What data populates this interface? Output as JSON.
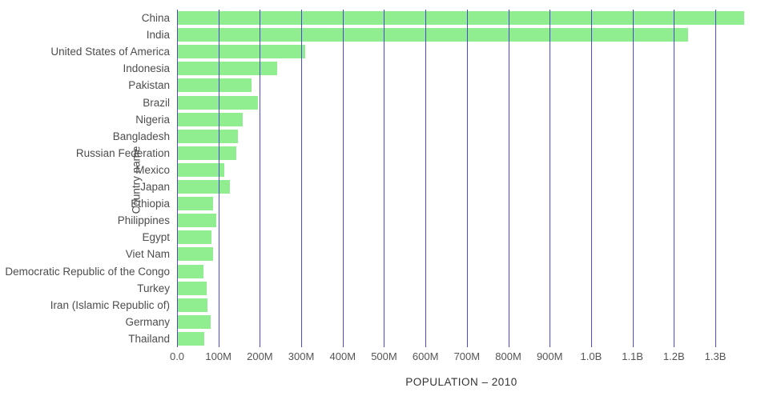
{
  "chart_data": {
    "type": "bar",
    "orientation": "horizontal",
    "title": "",
    "xlabel": "POPULATION – 2010",
    "ylabel": "Country name",
    "bar_color": "#90ee90",
    "gridline_color": "#4a4ad1",
    "legend": "none",
    "grid": "vertical",
    "xlim_millions": [
      0,
      1385
    ],
    "categories": [
      "China",
      "India",
      "United States of America",
      "Indonesia",
      "Pakistan",
      "Brazil",
      "Nigeria",
      "Bangladesh",
      "Russian Federation",
      "Mexico",
      "Japan",
      "Ethiopia",
      "Philippines",
      "Egypt",
      "Viet Nam",
      "Democratic Republic of the Congo",
      "Turkey",
      "Iran (Islamic Republic of)",
      "Germany",
      "Thailand"
    ],
    "values_millions": [
      1368.8,
      1234.3,
      309.0,
      241.8,
      179.4,
      195.7,
      158.5,
      147.6,
      143.5,
      114.1,
      128.1,
      87.6,
      94.0,
      82.8,
      88.0,
      64.6,
      72.3,
      74.3,
      80.8,
      66.7
    ],
    "x_ticks": [
      {
        "value": 0,
        "label": "0.0"
      },
      {
        "value": 100,
        "label": "100M"
      },
      {
        "value": 200,
        "label": "200M"
      },
      {
        "value": 300,
        "label": "300M"
      },
      {
        "value": 400,
        "label": "400M"
      },
      {
        "value": 500,
        "label": "500M"
      },
      {
        "value": 600,
        "label": "600M"
      },
      {
        "value": 700,
        "label": "700M"
      },
      {
        "value": 800,
        "label": "800M"
      },
      {
        "value": 900,
        "label": "900M"
      },
      {
        "value": 1000,
        "label": "1.0B"
      },
      {
        "value": 1100,
        "label": "1.1B"
      },
      {
        "value": 1200,
        "label": "1.2B"
      },
      {
        "value": 1300,
        "label": "1.3B"
      }
    ]
  }
}
